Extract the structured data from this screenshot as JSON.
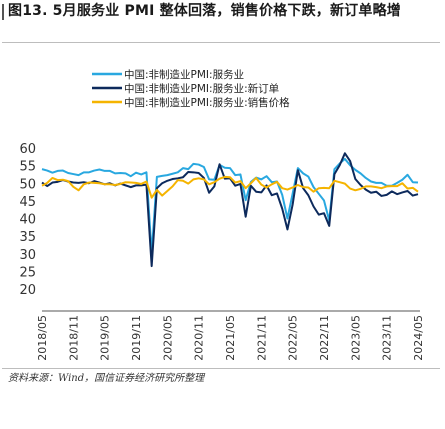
{
  "header": {
    "title": "图13. 5月服务业 PMI 整体回落，销售价格下跌，新订单略增"
  },
  "source": {
    "text": "资料来源：Wind，国信证券经济研究所整理"
  },
  "chart_data": {
    "type": "line",
    "title": "",
    "xlabel": "",
    "ylabel": "",
    "ylim": [
      20,
      60
    ],
    "yticks": [
      20,
      25,
      30,
      35,
      40,
      45,
      50,
      55,
      60
    ],
    "grid": false,
    "legend_position": "top-center",
    "x": [
      "2018/05",
      "2018/06",
      "2018/07",
      "2018/08",
      "2018/09",
      "2018/10",
      "2018/11",
      "2018/12",
      "2019/01",
      "2019/02",
      "2019/03",
      "2019/04",
      "2019/05",
      "2019/06",
      "2019/07",
      "2019/08",
      "2019/09",
      "2019/10",
      "2019/11",
      "2019/12",
      "2020/01",
      "2020/02",
      "2020/03",
      "2020/04",
      "2020/05",
      "2020/06",
      "2020/07",
      "2020/08",
      "2020/09",
      "2020/10",
      "2020/11",
      "2020/12",
      "2021/01",
      "2021/02",
      "2021/03",
      "2021/04",
      "2021/05",
      "2021/06",
      "2021/07",
      "2021/08",
      "2021/09",
      "2021/10",
      "2021/11",
      "2021/12",
      "2022/01",
      "2022/02",
      "2022/03",
      "2022/04",
      "2022/05",
      "2022/06",
      "2022/07",
      "2022/08",
      "2022/09",
      "2022/10",
      "2022/11",
      "2022/12",
      "2023/01",
      "2023/02",
      "2023/03",
      "2023/04",
      "2023/05",
      "2023/06",
      "2023/07",
      "2023/08",
      "2023/09",
      "2023/10",
      "2023/11",
      "2023/12",
      "2024/01",
      "2024/02",
      "2024/03",
      "2024/04",
      "2024/05"
    ],
    "xtick_labels": [
      "2018/05",
      "2018/11",
      "2019/05",
      "2019/11",
      "2020/05",
      "2020/11",
      "2021/05",
      "2021/11",
      "2022/05",
      "2022/11",
      "2023/05",
      "2023/11",
      "2024/05"
    ],
    "series": [
      {
        "name": "中国:非制造业PMI:服务业",
        "color": "#29a8e0",
        "values": [
          54.0,
          53.6,
          53.0,
          53.5,
          53.6,
          52.9,
          52.6,
          52.3,
          53.1,
          53.1,
          53.6,
          53.9,
          53.5,
          53.5,
          52.8,
          52.9,
          52.8,
          52.0,
          53.0,
          52.5,
          53.1,
          30.1,
          51.8,
          52.1,
          52.3,
          52.7,
          53.1,
          54.3,
          54.0,
          55.5,
          55.3,
          54.6,
          51.1,
          51.0,
          55.2,
          54.4,
          54.3,
          52.3,
          52.5,
          45.2,
          50.4,
          51.6,
          51.1,
          52.0,
          50.3,
          50.5,
          46.7,
          40.0,
          47.1,
          54.3,
          52.8,
          51.9,
          48.9,
          47.0,
          45.1,
          39.4,
          54.0,
          55.6,
          56.9,
          55.1,
          53.8,
          52.8,
          51.5,
          50.5,
          50.1,
          50.1,
          49.3,
          49.3,
          50.1,
          51.0,
          52.4,
          50.3,
          50.2
        ]
      },
      {
        "name": "中国:非制造业PMI:服务业:新订单",
        "color": "#0d2a5c",
        "values": [
          50.2,
          49.2,
          50.2,
          50.4,
          50.9,
          50.5,
          50.2,
          50.1,
          50.3,
          50.0,
          50.6,
          50.2,
          49.7,
          50.0,
          49.4,
          49.9,
          49.4,
          48.9,
          49.4,
          49.4,
          49.6,
          26.5,
          48.6,
          50.0,
          50.7,
          51.2,
          51.4,
          51.7,
          53.2,
          53.1,
          52.9,
          51.5,
          47.3,
          49.1,
          55.4,
          51.3,
          51.4,
          49.3,
          49.8,
          40.5,
          49.3,
          47.6,
          47.4,
          49.4,
          46.6,
          47.1,
          42.8,
          36.9,
          44.0,
          53.7,
          48.6,
          46.6,
          43.4,
          41.1,
          41.5,
          37.9,
          52.6,
          55.1,
          58.5,
          56.3,
          51.2,
          49.5,
          48.2,
          47.3,
          47.6,
          46.4,
          46.7,
          47.7,
          46.9,
          47.4,
          47.8,
          46.5,
          46.9
        ]
      },
      {
        "name": "中国:非制造业PMI:服务业:销售价格",
        "color": "#f5b400",
        "values": [
          49.3,
          50.1,
          51.5,
          50.9,
          51.0,
          50.6,
          49.0,
          48.0,
          49.7,
          50.2,
          50.1,
          50.0,
          49.7,
          49.7,
          49.5,
          49.8,
          50.3,
          50.2,
          50.1,
          49.8,
          50.5,
          45.9,
          48.1,
          46.5,
          47.8,
          49.1,
          50.9,
          50.7,
          49.9,
          51.1,
          51.4,
          51.1,
          49.7,
          50.3,
          51.3,
          51.8,
          51.7,
          50.2,
          50.6,
          48.6,
          50.0,
          51.5,
          49.6,
          48.8,
          49.7,
          50.4,
          48.6,
          48.2,
          48.8,
          49.5,
          48.9,
          48.8,
          47.6,
          48.6,
          48.7,
          48.6,
          50.7,
          50.3,
          49.9,
          48.5,
          48.0,
          48.4,
          49.1,
          49.1,
          48.9,
          48.6,
          49.1,
          49.2,
          49.2,
          50.0,
          48.5,
          48.7,
          47.6
        ]
      }
    ]
  }
}
